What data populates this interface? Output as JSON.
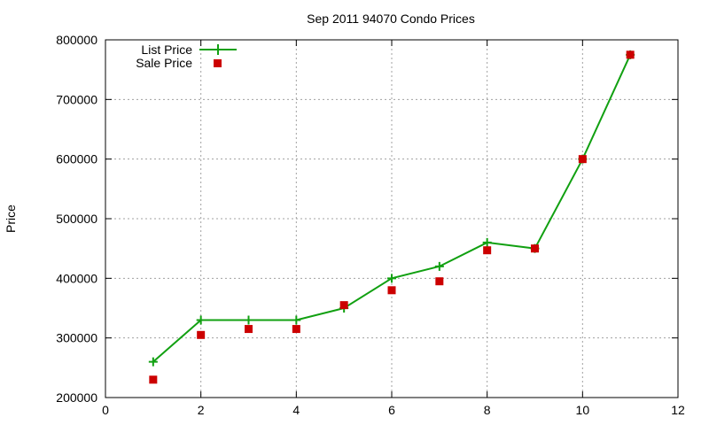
{
  "chart_data": {
    "type": "line",
    "title": "Sep 2011 94070 Condo Prices",
    "xlabel": "",
    "ylabel": "Price",
    "xlim": [
      0,
      12
    ],
    "ylim": [
      200000,
      800000
    ],
    "x_ticks": [
      0,
      2,
      4,
      6,
      8,
      10,
      12
    ],
    "y_ticks": [
      200000,
      300000,
      400000,
      500000,
      600000,
      700000,
      800000
    ],
    "grid": true,
    "legend_position": "top-left",
    "series": [
      {
        "name": "List Price",
        "style": "line-cross",
        "color": "#11a011",
        "x": [
          1,
          2,
          3,
          4,
          5,
          6,
          7,
          8,
          9,
          10,
          11
        ],
        "y": [
          260000,
          330000,
          330000,
          330000,
          350000,
          400000,
          420000,
          460000,
          450000,
          600000,
          775000
        ]
      },
      {
        "name": "Sale Price",
        "style": "square",
        "color": "#cc0000",
        "x": [
          1,
          2,
          3,
          4,
          5,
          6,
          7,
          8,
          9,
          10,
          11
        ],
        "y": [
          230000,
          305000,
          315000,
          315000,
          355000,
          380000,
          395000,
          447000,
          450000,
          600000,
          775000
        ]
      }
    ]
  }
}
